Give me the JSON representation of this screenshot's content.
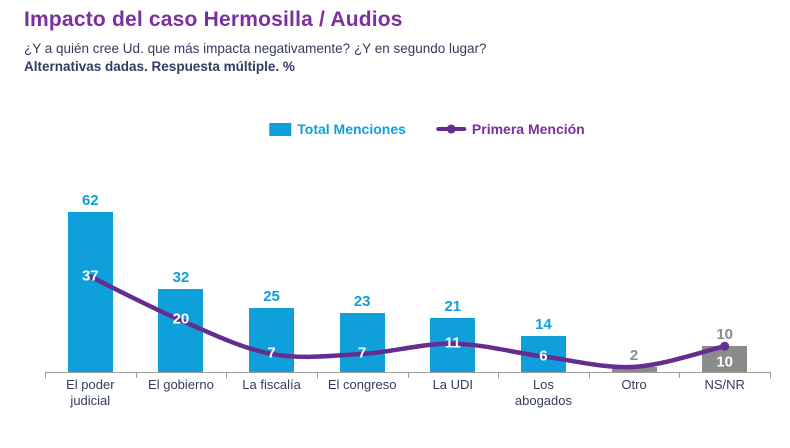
{
  "header": {
    "title": "Impacto del caso Hermosilla / Audios",
    "question": "¿Y a quién cree Ud. que más impacta negativamente? ¿Y en segundo lugar?",
    "note": "Alternativas dadas. Respuesta múltiple. %"
  },
  "legend": {
    "items": [
      {
        "label": "Total Menciones",
        "swatch": "bar"
      },
      {
        "label": "Primera Mención",
        "swatch": "line"
      }
    ]
  },
  "colors": {
    "bar_blue": "#0fa0db",
    "bar_gray": "#8b8b8b",
    "line_purple": "#662d91",
    "title_purple": "#7c2f9e",
    "text_navy": "#333c5f",
    "label_gray": "#8b8b8b",
    "axis_gray": "#9b9b9b",
    "line_label_white": "#ffffff"
  },
  "chart_data": {
    "type": "bar",
    "subtype": "bar-with-line-overlay",
    "categories": [
      "El poder judicial",
      "El gobierno",
      "La fiscalía",
      "El congreso",
      "La UDI",
      "Los abogados",
      "Otro",
      "NS/NR"
    ],
    "category_tick_lines": [
      [
        "El poder",
        "judicial"
      ],
      [
        "El gobierno"
      ],
      [
        "La fiscalía"
      ],
      [
        "El congreso"
      ],
      [
        "La UDI"
      ],
      [
        "Los",
        "abogados"
      ],
      [
        "Otro"
      ],
      [
        "NS/NR"
      ]
    ],
    "series": [
      {
        "name": "Total Menciones",
        "type": "bar",
        "values": [
          62,
          32,
          25,
          23,
          21,
          14,
          2,
          10
        ],
        "bar_styles": [
          "blue",
          "blue",
          "blue",
          "blue",
          "blue",
          "blue",
          "gray",
          "gray"
        ],
        "value_labels": [
          "62",
          "32",
          "25",
          "23",
          "21",
          "14",
          "2",
          "10"
        ]
      },
      {
        "name": "Primera Mención",
        "type": "line",
        "values": [
          37,
          20,
          7,
          7,
          11,
          6,
          2,
          10
        ],
        "point_labels": [
          "37",
          "20",
          "7",
          "7",
          "11",
          "6",
          "",
          "10"
        ],
        "end_marker": "dot"
      }
    ],
    "ylim": [
      0,
      72
    ],
    "grid": false,
    "legend_position": "top-center",
    "title": "Impacto del caso Hermosilla / Audios",
    "xlabel": "",
    "ylabel": ""
  }
}
